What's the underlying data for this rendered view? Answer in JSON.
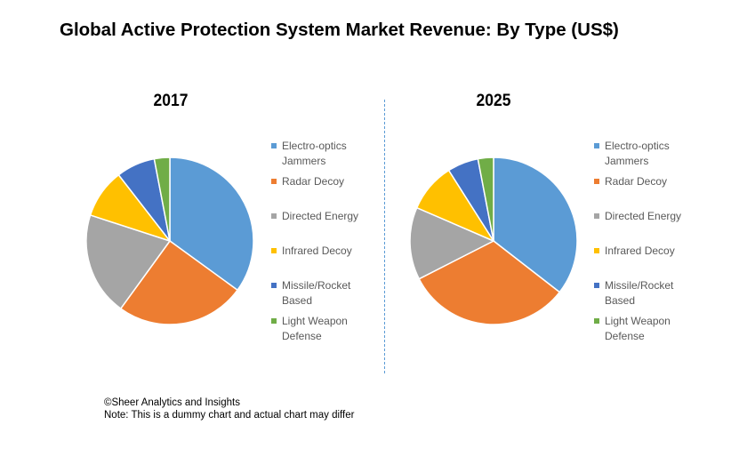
{
  "title": "Global Active Protection System Market Revenue: By Type (US$)",
  "chart_data": [
    {
      "type": "pie",
      "title": "2017",
      "categories": [
        "Electro-optics Jammers",
        "Radar Decoy",
        "Directed Energy",
        "Infrared Decoy",
        "Missile/Rocket Based",
        "Light Weapon Defense"
      ],
      "values": [
        35,
        25,
        20,
        9.5,
        7.5,
        3
      ],
      "colors": [
        "#5b9bd5",
        "#ed7d31",
        "#a5a5a5",
        "#ffc000",
        "#4472c4",
        "#70ad47"
      ],
      "legend_placement": "right"
    },
    {
      "type": "pie",
      "title": "2025",
      "categories": [
        "Electro-optics Jammers",
        "Radar Decoy",
        "Directed Energy",
        "Infrared Decoy",
        "Missile/Rocket Based",
        "Light Weapon Defense"
      ],
      "values": [
        35.5,
        32,
        14,
        9.5,
        6,
        3
      ],
      "colors": [
        "#5b9bd5",
        "#ed7d31",
        "#a5a5a5",
        "#ffc000",
        "#4472c4",
        "#70ad47"
      ],
      "legend_placement": "right"
    }
  ],
  "legend": {
    "labels": [
      "Electro-optics\nJammers",
      "Radar Decoy",
      "Directed Energy",
      "Infrared Decoy",
      "Missile/Rocket\nBased",
      "Light Weapon\nDefense"
    ]
  },
  "footer": {
    "line1": "©Sheer Analytics and Insights",
    "line2": "Note: This is a dummy chart and actual chart may differ"
  }
}
